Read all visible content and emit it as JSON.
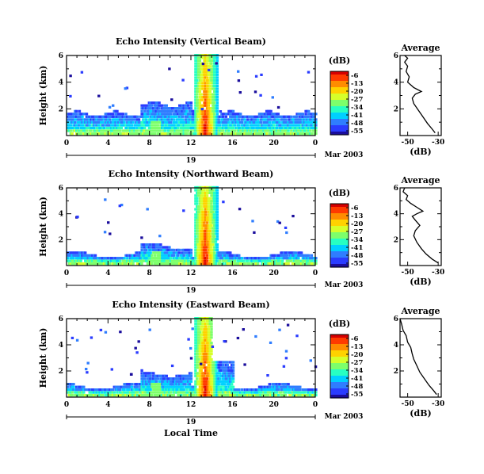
{
  "chart_data": [
    {
      "type": "heatmap",
      "title": "Echo Intensity (Vertical Beam)",
      "ylabel": "Height (km)",
      "xlim": [
        0,
        24
      ],
      "ylim": [
        0,
        6
      ],
      "xticks": [
        "0",
        "4",
        "8",
        "12",
        "16",
        "20",
        "0"
      ],
      "yticks": [
        "2",
        "4",
        "6"
      ],
      "date_label": "19",
      "month_label": "Mar 2003",
      "colorbar": {
        "unit": "(dB)",
        "ticks": [
          "-6",
          "-13",
          "-20",
          "-27",
          "-34",
          "-41",
          "-48",
          "-55"
        ]
      },
      "profile": {
        "title": "Average",
        "xlabel": "(dB)",
        "xticks": [
          "-50",
          "-30"
        ],
        "yticks": [
          "2",
          "4",
          "6"
        ],
        "x": [
          -32,
          -34,
          -37,
          -40,
          -43,
          -46,
          -47,
          -45,
          -41,
          -46,
          -50,
          -49,
          -51,
          -50,
          -52,
          -50,
          -52
        ],
        "y": [
          0.2,
          0.5,
          0.9,
          1.4,
          1.9,
          2.4,
          2.8,
          3.1,
          3.3,
          3.6,
          4.0,
          4.4,
          4.8,
          5.2,
          5.5,
          5.8,
          6.0
        ]
      }
    },
    {
      "type": "heatmap",
      "title": "Echo Intensity (Northward Beam)",
      "ylabel": "Height (km)",
      "xlim": [
        0,
        24
      ],
      "ylim": [
        0,
        6
      ],
      "xticks": [
        "0",
        "4",
        "8",
        "12",
        "16",
        "20",
        "0"
      ],
      "yticks": [
        "2",
        "4",
        "6"
      ],
      "date_label": "19",
      "month_label": "Mar 2003",
      "colorbar": {
        "unit": "(dB)",
        "ticks": [
          "-6",
          "-13",
          "-20",
          "-27",
          "-34",
          "-41",
          "-48",
          "-55"
        ]
      },
      "profile": {
        "title": "Average",
        "xlabel": "(dB)",
        "xticks": [
          "-50",
          "-30"
        ],
        "yticks": [
          "2",
          "4",
          "6"
        ],
        "x": [
          -30,
          -34,
          -38,
          -41,
          -44,
          -46,
          -45,
          -42,
          -45,
          -47,
          -44,
          -40,
          -44,
          -48,
          -51,
          -50,
          -53,
          -52
        ],
        "y": [
          0.2,
          0.5,
          0.9,
          1.3,
          1.8,
          2.3,
          2.7,
          3.1,
          3.5,
          3.8,
          4.0,
          4.2,
          4.5,
          4.8,
          5.1,
          5.4,
          5.7,
          6.0
        ]
      }
    },
    {
      "type": "heatmap",
      "title": "Echo Intensity (Eastward Beam)",
      "ylabel": "Height (km)",
      "xlim": [
        0,
        24
      ],
      "ylim": [
        0,
        6
      ],
      "xticks": [
        "0",
        "4",
        "8",
        "12",
        "16",
        "20",
        "0"
      ],
      "yticks": [
        "2",
        "4",
        "6"
      ],
      "date_label": "19",
      "month_label": "Mar 2003",
      "xlabel": "Local Time",
      "colorbar": {
        "unit": "(dB)",
        "ticks": [
          "-6",
          "-13",
          "-20",
          "-27",
          "-34",
          "-41",
          "-48",
          "-55"
        ]
      },
      "profile": {
        "title": "Average",
        "xlabel": "(dB)",
        "xticks": [
          "-50",
          "-30"
        ],
        "yticks": [
          "2",
          "4",
          "6"
        ],
        "x": [
          -31,
          -33,
          -36,
          -39,
          -42,
          -44,
          -46,
          -47,
          -48,
          -50,
          -51,
          -53,
          -54,
          -55
        ],
        "y": [
          0.2,
          0.5,
          0.9,
          1.4,
          1.9,
          2.4,
          2.9,
          3.3,
          3.8,
          4.2,
          4.7,
          5.1,
          5.6,
          6.0
        ]
      }
    }
  ],
  "colors": {
    "scale": [
      "#d50000",
      "#ff3a00",
      "#ff8c00",
      "#ffd200",
      "#d6ff2a",
      "#7dff6b",
      "#27ffc2",
      "#00d0ff",
      "#2f7dff",
      "#2a3cff",
      "#1a0d9c"
    ]
  }
}
